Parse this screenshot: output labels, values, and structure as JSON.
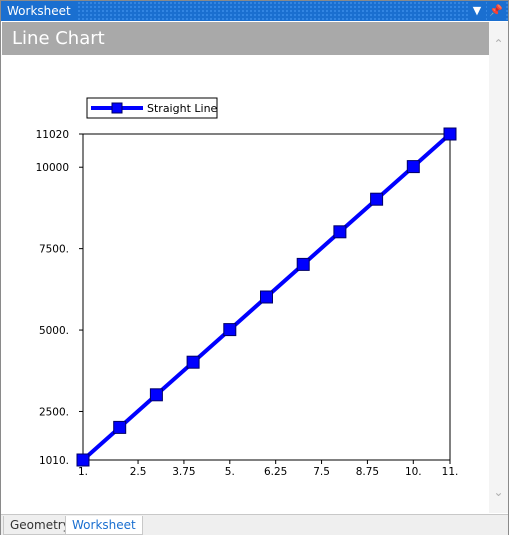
{
  "window": {
    "title": "Worksheet",
    "controls": [
      "dropdown-icon",
      "pin-icon"
    ]
  },
  "header": {
    "title": "Line Chart"
  },
  "tabs": [
    {
      "label": "Geometry",
      "active": false
    },
    {
      "label": "Worksheet",
      "active": true
    }
  ],
  "colors": {
    "series": "#0000ff",
    "titlebar": "#1a6fd0",
    "header": "#a9a9a9"
  },
  "chart_data": {
    "type": "line",
    "title": "",
    "xlabel": "",
    "ylabel": "",
    "legend": {
      "placement": "top-left"
    },
    "grid": false,
    "xlim": [
      1,
      11
    ],
    "ylim": [
      1010,
      11020
    ],
    "x_ticks": [
      {
        "value": 1,
        "label": "1."
      },
      {
        "value": 2.5,
        "label": "2.5"
      },
      {
        "value": 3.75,
        "label": "3.75"
      },
      {
        "value": 5,
        "label": "5."
      },
      {
        "value": 6.25,
        "label": "6.25"
      },
      {
        "value": 7.5,
        "label": "7.5"
      },
      {
        "value": 8.75,
        "label": "8.75"
      },
      {
        "value": 10,
        "label": "10."
      },
      {
        "value": 11,
        "label": "11."
      }
    ],
    "y_ticks": [
      {
        "value": 1010,
        "label": "1010."
      },
      {
        "value": 2500,
        "label": "2500."
      },
      {
        "value": 5000,
        "label": "5000."
      },
      {
        "value": 7500,
        "label": "7500."
      },
      {
        "value": 10000,
        "label": "10000"
      },
      {
        "value": 11020,
        "label": "11020"
      }
    ],
    "series": [
      {
        "name": "Straight Line",
        "color": "#0000ff",
        "marker": "square",
        "x": [
          1,
          2,
          3,
          4,
          5,
          6,
          7,
          8,
          9,
          10,
          11
        ],
        "y": [
          1010,
          2011,
          3012,
          4013,
          5014,
          6015,
          7016,
          8017,
          9018,
          10019,
          11020
        ]
      }
    ]
  }
}
